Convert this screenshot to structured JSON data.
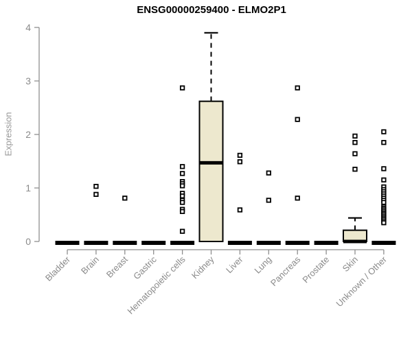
{
  "title": "ENSG00000259400 - ELMO2P1",
  "chart_data": {
    "type": "boxplot",
    "title": "ENSG00000259400 - ELMO2P1",
    "xlabel": "",
    "ylabel": "Expression",
    "ylim": [
      0,
      4
    ],
    "yticks": [
      0,
      1,
      2,
      3,
      4
    ],
    "grid": false,
    "legend": "none",
    "categories": [
      "Bladder",
      "Brain",
      "Breast",
      "Gastric",
      "Hematopoietic cells",
      "Kidney",
      "Liver",
      "Lung",
      "Pancreas",
      "Prostate",
      "Skin",
      "Unknown / Other"
    ],
    "boxes": [
      {
        "category": "Bladder",
        "q1": 0,
        "median": 0,
        "q3": 0,
        "whisker_low": 0,
        "whisker_high": 0,
        "outliers": []
      },
      {
        "category": "Brain",
        "q1": 0,
        "median": 0,
        "q3": 0,
        "whisker_low": 0,
        "whisker_high": 0,
        "outliers": [
          1.03,
          0.88
        ]
      },
      {
        "category": "Breast",
        "q1": 0,
        "median": 0,
        "q3": 0,
        "whisker_low": 0,
        "whisker_high": 0,
        "outliers": [
          0.81
        ]
      },
      {
        "category": "Gastric",
        "q1": 0,
        "median": 0,
        "q3": 0,
        "whisker_low": 0,
        "whisker_high": 0,
        "outliers": []
      },
      {
        "category": "Hematopoietic cells",
        "q1": 0,
        "median": 0,
        "q3": 0,
        "whisker_low": 0,
        "whisker_high": 0,
        "outliers": [
          2.87,
          1.4,
          1.27,
          1.12,
          1.08,
          1.04,
          0.9,
          0.85,
          0.77,
          0.73,
          0.6,
          0.56,
          0.19
        ]
      },
      {
        "category": "Kidney",
        "q1": 0,
        "median": 1.47,
        "q3": 2.62,
        "whisker_low": 0,
        "whisker_high": 3.9,
        "outliers": []
      },
      {
        "category": "Liver",
        "q1": 0,
        "median": 0,
        "q3": 0,
        "whisker_low": 0,
        "whisker_high": 0,
        "outliers": [
          1.61,
          1.49,
          0.59
        ]
      },
      {
        "category": "Lung",
        "q1": 0,
        "median": 0,
        "q3": 0,
        "whisker_low": 0,
        "whisker_high": 0,
        "outliers": [
          1.28,
          0.77
        ]
      },
      {
        "category": "Pancreas",
        "q1": 0,
        "median": 0,
        "q3": 0,
        "whisker_low": 0,
        "whisker_high": 0,
        "outliers": [
          2.87,
          2.28,
          0.81
        ]
      },
      {
        "category": "Prostate",
        "q1": 0,
        "median": 0,
        "q3": 0,
        "whisker_low": 0,
        "whisker_high": 0,
        "outliers": []
      },
      {
        "category": "Skin",
        "q1": 0,
        "median": 0,
        "q3": 0.21,
        "whisker_low": 0,
        "whisker_high": 0.44,
        "outliers": [
          1.97,
          1.85,
          1.64,
          1.35
        ]
      },
      {
        "category": "Unknown / Other",
        "q1": 0,
        "median": 0,
        "q3": 0,
        "whisker_low": 0,
        "whisker_high": 0,
        "outliers": [
          2.05,
          1.85,
          1.36,
          1.15,
          1.02,
          0.97,
          0.93,
          0.89,
          0.85,
          0.81,
          0.77,
          0.73,
          0.65,
          0.62,
          0.59,
          0.56,
          0.53,
          0.5,
          0.47,
          0.44,
          0.41,
          0.38,
          0.35
        ]
      }
    ],
    "colors": {
      "box_fill": "#ede8ce",
      "box_border": "#000000",
      "median": "#000000",
      "outlier": "#000000",
      "axis": "#8e8e8e",
      "tick_label": "#8a8a8a",
      "title": "#000000"
    }
  }
}
